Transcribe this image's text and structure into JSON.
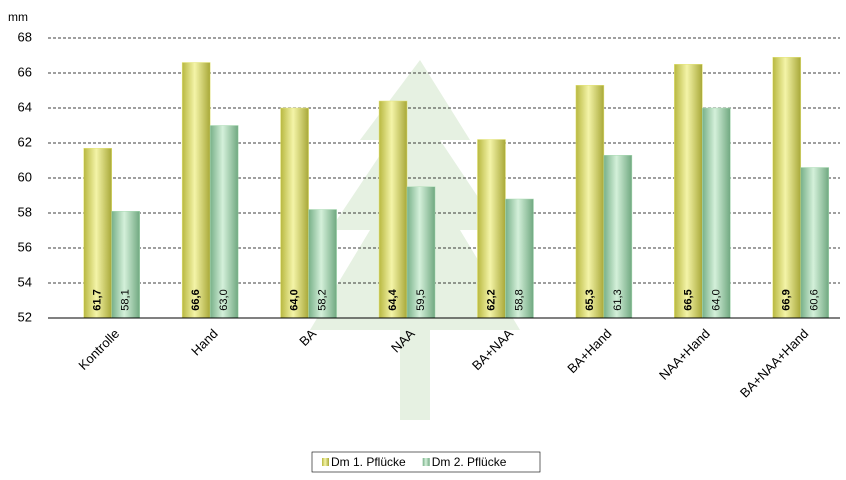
{
  "chart_data": {
    "type": "bar",
    "y_label": "mm",
    "categories": [
      "Kontrolle",
      "Hand",
      "BA",
      "NAA",
      "BA+NAA",
      "BA+Hand",
      "NAA+Hand",
      "BA+NAA+Hand"
    ],
    "series": [
      {
        "name": "Dm 1. Pflücke",
        "color": "#e6e67a",
        "values": [
          61.7,
          66.6,
          64.0,
          64.4,
          62.2,
          65.3,
          66.5,
          66.9
        ],
        "value_labels": [
          "61,7",
          "66,6",
          "64,0",
          "64,4",
          "62,2",
          "65,3",
          "66,5",
          "66,9"
        ]
      },
      {
        "name": "Dm 2. Pflücke",
        "color": "#a9dbb4",
        "values": [
          58.1,
          63.0,
          58.2,
          59.5,
          58.8,
          61.3,
          64.0,
          60.6
        ],
        "value_labels": [
          "58,1",
          "63,0",
          "58,2",
          "59,5",
          "58,8",
          "61,3",
          "64,0",
          "60,6"
        ]
      }
    ],
    "ylim": [
      52,
      68
    ],
    "yticks": [
      52,
      54,
      56,
      58,
      60,
      62,
      64,
      66,
      68
    ],
    "grid": true
  }
}
